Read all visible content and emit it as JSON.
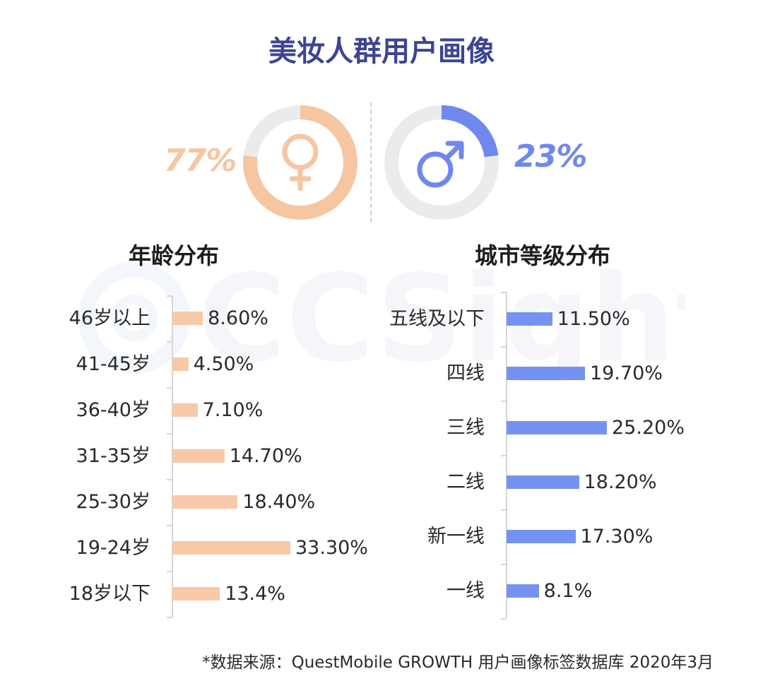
{
  "title": "美妆人群用户画像",
  "watermark": "CCSight",
  "gender": {
    "female": {
      "label": "77%",
      "value": 77,
      "color": "#f6c6a2",
      "icon": "female-symbol-icon"
    },
    "male": {
      "label": "23%",
      "value": 23,
      "color": "#6f88ef",
      "icon": "male-symbol-icon"
    },
    "ring_track_color": "#ebebeb"
  },
  "chart_data": [
    {
      "type": "bar",
      "orientation": "horizontal",
      "title": "年龄分布",
      "categories": [
        "46岁以上",
        "41-45岁",
        "36-40岁",
        "31-35岁",
        "25-30岁",
        "19-24岁",
        "18岁以下"
      ],
      "values": [
        8.6,
        4.5,
        7.1,
        14.7,
        18.4,
        33.3,
        13.4
      ],
      "data_labels": [
        "8.60%",
        "4.50%",
        "7.10%",
        "14.70%",
        "18.40%",
        "33.30%",
        "13.4%"
      ],
      "xlim": [
        0,
        33.3
      ],
      "color": "#f7c9a7"
    },
    {
      "type": "bar",
      "orientation": "horizontal",
      "title": "城市等级分布",
      "categories": [
        "五线及以下",
        "四线",
        "三线",
        "二线",
        "新一线",
        "一线"
      ],
      "values": [
        11.5,
        19.7,
        25.2,
        18.2,
        17.3,
        8.1
      ],
      "data_labels": [
        "11.50%",
        "19.70%",
        "25.20%",
        "18.20%",
        "17.30%",
        "8.1%"
      ],
      "xlim": [
        0,
        25.2
      ],
      "color": "#7592f2"
    }
  ],
  "footer": {
    "source": "*数据来源：QuestMobile GROWTH 用户画像标签数据库 2020年3月"
  }
}
